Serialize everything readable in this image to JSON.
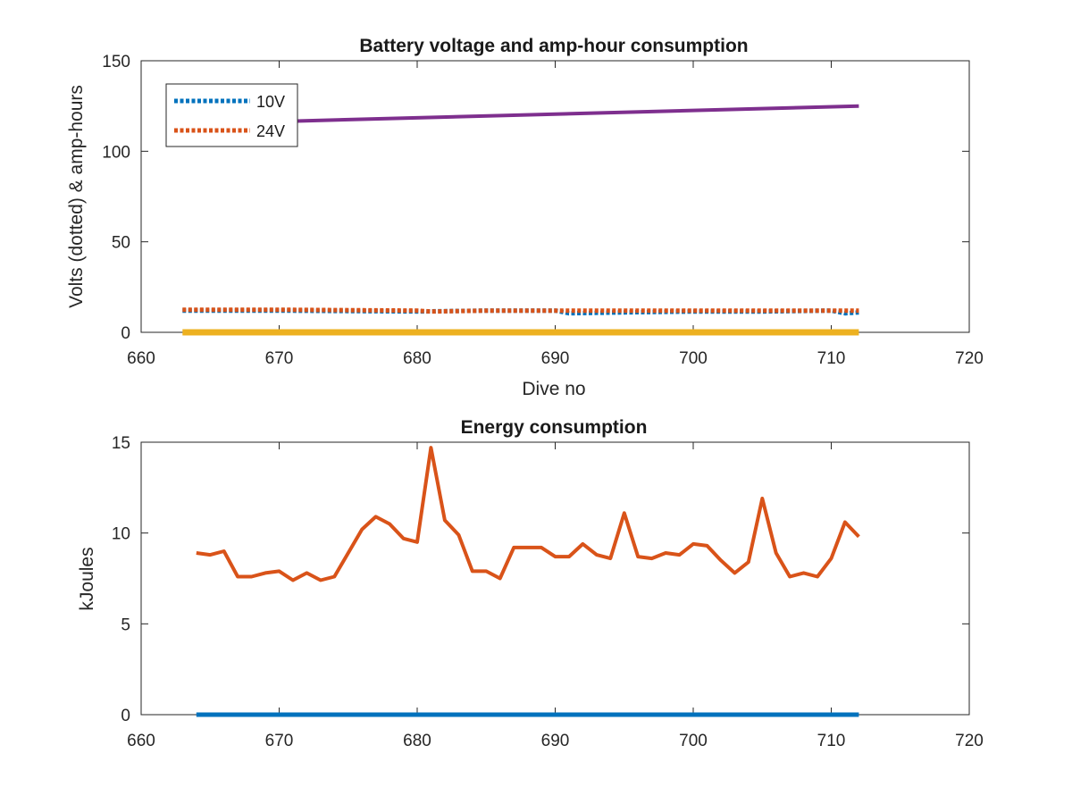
{
  "chart_data": [
    {
      "type": "line",
      "title": "Battery voltage and amp-hour consumption",
      "xlabel": "Dive no",
      "ylabel": "Volts (dotted) & amp-hours",
      "xlim": [
        660,
        720
      ],
      "ylim": [
        0,
        150
      ],
      "xticks": [
        660,
        670,
        680,
        690,
        700,
        710,
        720
      ],
      "yticks": [
        0,
        50,
        100,
        150
      ],
      "legend_position": "top-left",
      "series": [
        {
          "name": "10V",
          "style": "dotted",
          "color": "#0072BD",
          "x": [
            663,
            670,
            680,
            685,
            690,
            691,
            695,
            700,
            705,
            710,
            711,
            712
          ],
          "y": [
            12,
            12,
            11.5,
            12,
            12,
            10.5,
            11,
            11.5,
            11.5,
            12,
            10.5,
            11
          ]
        },
        {
          "name": "24V",
          "style": "dotted",
          "color": "#D95319",
          "x": [
            663,
            670,
            680,
            681,
            685,
            690,
            695,
            700,
            705,
            710,
            712
          ],
          "y": [
            12.5,
            12.5,
            12,
            11.5,
            12,
            12,
            12,
            12,
            12,
            12,
            12
          ]
        },
        {
          "style": "solid",
          "color": "#EDB120",
          "x": [
            663,
            712
          ],
          "y": [
            0,
            0
          ]
        },
        {
          "style": "solid",
          "color": "#7E2F8E",
          "x": [
            663,
            712
          ],
          "y": [
            115,
            125
          ]
        }
      ]
    },
    {
      "type": "line",
      "title": "Energy consumption",
      "xlabel": "",
      "ylabel": "kJoules",
      "xlim": [
        660,
        720
      ],
      "ylim": [
        0,
        15
      ],
      "xticks": [
        660,
        670,
        680,
        690,
        700,
        710,
        720
      ],
      "yticks": [
        0,
        5,
        10,
        15
      ],
      "series": [
        {
          "style": "solid",
          "color": "#0072BD",
          "x": [
            664,
            712
          ],
          "y": [
            0,
            0
          ]
        },
        {
          "style": "solid",
          "color": "#D95319",
          "x": [
            664,
            665,
            666,
            667,
            668,
            669,
            670,
            671,
            672,
            673,
            674,
            675,
            676,
            677,
            678,
            679,
            680,
            681,
            682,
            683,
            684,
            685,
            686,
            687,
            688,
            689,
            690,
            691,
            692,
            693,
            694,
            695,
            696,
            697,
            698,
            699,
            700,
            701,
            702,
            703,
            704,
            705,
            706,
            707,
            708,
            709,
            710,
            711,
            712
          ],
          "y": [
            8.9,
            8.8,
            9.0,
            7.6,
            7.6,
            7.8,
            7.9,
            7.4,
            7.8,
            7.4,
            7.6,
            8.9,
            10.2,
            10.9,
            10.5,
            9.7,
            9.5,
            14.7,
            10.7,
            9.9,
            7.9,
            7.9,
            7.5,
            9.2,
            9.2,
            9.2,
            8.7,
            8.7,
            9.4,
            8.8,
            8.6,
            11.1,
            8.7,
            8.6,
            8.9,
            8.8,
            9.4,
            9.3,
            8.5,
            7.8,
            8.4,
            11.9,
            8.9,
            7.6,
            7.8,
            7.6,
            8.6,
            10.6,
            9.8
          ]
        }
      ]
    }
  ]
}
